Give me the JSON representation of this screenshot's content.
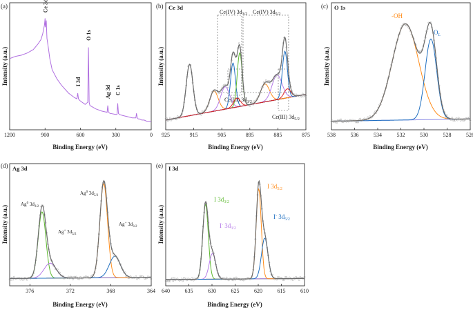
{
  "chart_data": [
    {
      "panel": "(a)",
      "type": "line",
      "title": "",
      "xlabel": "Binding Energy (eV)",
      "ylabel": "Intensity (a.u.)",
      "xlim": [
        1200,
        0
      ],
      "x_ticks": [
        "1200",
        "900",
        "600",
        "300",
        "0"
      ],
      "series": [
        {
          "name": "survey",
          "color": "#b06fe0",
          "x": [
            1200,
            1150,
            1100,
            1050,
            1000,
            960,
            935,
            920,
            905,
            900,
            898,
            890,
            884,
            870,
            860,
            840,
            800,
            760,
            700,
            650,
            630,
            623,
            617,
            610,
            600,
            560,
            538,
            532,
            526,
            520,
            470,
            420,
            374,
            368,
            362,
            350,
            300,
            290,
            284,
            278,
            270,
            240,
            200,
            160,
            130,
            125,
            118,
            110,
            100,
            80,
            60,
            40,
            20,
            0
          ],
          "y": [
            0.6,
            0.62,
            0.63,
            0.65,
            0.68,
            0.73,
            0.77,
            0.82,
            0.9,
            0.96,
            0.88,
            0.94,
            0.78,
            0.68,
            0.6,
            0.5,
            0.42,
            0.36,
            0.29,
            0.25,
            0.24,
            0.29,
            0.24,
            0.23,
            0.22,
            0.19,
            0.21,
            0.7,
            0.21,
            0.18,
            0.15,
            0.13,
            0.12,
            0.18,
            0.12,
            0.11,
            0.1,
            0.1,
            0.2,
            0.11,
            0.1,
            0.09,
            0.08,
            0.07,
            0.07,
            0.11,
            0.07,
            0.06,
            0.06,
            0.05,
            0.05,
            0.04,
            0.04,
            0.04
          ]
        }
      ],
      "annotations": [
        {
          "text": "Ce 3d",
          "x": 900
        },
        {
          "text": "O 1s",
          "x": 532
        },
        {
          "text": "I 3d",
          "x": 620
        },
        {
          "text": "Ag 3d",
          "x": 370
        },
        {
          "text": "C 1s",
          "x": 284
        }
      ]
    },
    {
      "panel": "(b)",
      "type": "line",
      "title": "Ce 3d",
      "xlabel": "Binding Energy (eV)",
      "ylabel": "Intensity (a.u.)",
      "xlim": [
        925,
        875
      ],
      "x_ticks": [
        "925",
        "915",
        "905",
        "895",
        "885",
        "875"
      ],
      "peaks": [
        {
          "center": 916.5,
          "height": 0.46,
          "width": 1.2,
          "color": "#808080"
        },
        {
          "center": 907.8,
          "height": 0.18,
          "width": 1.5,
          "color": "#ff8c1a"
        },
        {
          "center": 903.8,
          "height": 0.2,
          "width": 1.6,
          "color": "#b57be8"
        },
        {
          "center": 901.0,
          "height": 0.4,
          "width": 0.9,
          "color": "#1f6fc0"
        },
        {
          "center": 898.6,
          "height": 0.48,
          "width": 0.9,
          "color": "#5cb82e"
        },
        {
          "center": 899.6,
          "height": 0.08,
          "width": 1.2,
          "color": "#e02020"
        },
        {
          "center": 889.6,
          "height": 0.16,
          "width": 1.6,
          "color": "#ff8c1a"
        },
        {
          "center": 885.3,
          "height": 0.22,
          "width": 1.8,
          "color": "#b57be8"
        },
        {
          "center": 882.5,
          "height": 0.42,
          "width": 0.9,
          "color": "#1f6fc0"
        },
        {
          "center": 881.6,
          "height": 0.08,
          "width": 1.2,
          "color": "#e02020"
        }
      ],
      "background": [
        0.05,
        0.28
      ],
      "labels": [
        "Ce(IV) 3d3/2",
        "Ce(IV) 3d5/2",
        "Ce(III) 3d3/2",
        "Ce(III) 3d5/2"
      ]
    },
    {
      "panel": "(c)",
      "type": "line",
      "title": "O 1s",
      "xlabel": "Binding Energy (eV)",
      "ylabel": "Intensity (a.u.)",
      "xlim": [
        538,
        526
      ],
      "x_ticks": [
        "538",
        "536",
        "534",
        "532",
        "530",
        "528",
        "526"
      ],
      "peaks": [
        {
          "center": 531.6,
          "height": 0.86,
          "width": 1.15,
          "color": "#ff8c1a"
        },
        {
          "center": 529.4,
          "height": 0.72,
          "width": 0.5,
          "color": "#1f6fc0"
        }
      ],
      "background": [
        0.04,
        0.06
      ],
      "labels": [
        "-OH",
        "OL"
      ]
    },
    {
      "panel": "(d)",
      "type": "line",
      "title": "Ag 3d",
      "xlabel": "Binding Energy (eV)",
      "ylabel": "Intensity (a.u.)",
      "xlim": [
        378,
        364
      ],
      "x_ticks": [
        "376",
        "372",
        "368",
        "364"
      ],
      "peaks": [
        {
          "center": 374.8,
          "height": 0.62,
          "width": 0.38,
          "color": "#5cb82e"
        },
        {
          "center": 374.0,
          "height": 0.14,
          "width": 0.6,
          "color": "#b57be8"
        },
        {
          "center": 368.7,
          "height": 0.88,
          "width": 0.38,
          "color": "#ff8c1a"
        },
        {
          "center": 367.6,
          "height": 0.2,
          "width": 0.55,
          "color": "#1f6fc0"
        }
      ],
      "background": [
        0.03,
        0.04
      ],
      "labels": [
        "Ag0 3d3/2",
        "Ag+ 3d5/2",
        "Ag0 3d5/2",
        "Ag+ 3d3/2"
      ]
    },
    {
      "panel": "(e)",
      "type": "line",
      "title": "I 3d",
      "xlabel": "Binding Energy (eV)",
      "ylabel": "Intensity (a.u.)",
      "xlim": [
        640,
        610
      ],
      "x_ticks": [
        "640",
        "635",
        "630",
        "625",
        "620",
        "615",
        "610"
      ],
      "peaks": [
        {
          "center": 631.4,
          "height": 0.7,
          "width": 0.6,
          "color": "#5cb82e"
        },
        {
          "center": 629.9,
          "height": 0.24,
          "width": 0.7,
          "color": "#b57be8"
        },
        {
          "center": 619.9,
          "height": 0.84,
          "width": 0.55,
          "color": "#ff8c1a"
        },
        {
          "center": 618.6,
          "height": 0.38,
          "width": 0.7,
          "color": "#1f6fc0"
        }
      ],
      "background": [
        0.02,
        0.03
      ],
      "labels": [
        "I 3d3/2",
        "I- 3d3/2",
        "I 3d5/2",
        "I- 3d5/2"
      ]
    }
  ],
  "panels": {
    "a": {
      "tag": "(a)"
    },
    "b": {
      "tag": "(b)",
      "title": "Ce 3d",
      "l1": "Ce(IV) 3d",
      "l1s": "3/2",
      "l2": "Ce(IV) 3d",
      "l2s": "5/2",
      "l3": "Ce(III) 3d",
      "l3s": "3/2",
      "l4": "Ce(III) 3d",
      "l4s": "5/2"
    },
    "c": {
      "tag": "(c)",
      "title": "O 1s",
      "l1": "-OH",
      "l2": "O",
      "l2s": "L"
    },
    "d": {
      "tag": "(d)",
      "title": "Ag 3d",
      "l1": "Ag",
      "l1sup": "0",
      "l1b": " 3d",
      "l1s": "3/2",
      "l2": "Ag",
      "l2sup": "+",
      "l2b": " 3d",
      "l2s": "5/2",
      "l3": "Ag",
      "l3sup": "0",
      "l3b": " 3d",
      "l3s": "5/2",
      "l4": "Ag",
      "l4sup": "+",
      "l4b": " 3d",
      "l4s": "3/2"
    },
    "e": {
      "tag": "(e)",
      "title": "I 3d",
      "l1": "I 3d",
      "l1s": "3/2",
      "l2": "I",
      "l2sup": "-",
      "l2b": " 3d",
      "l2s": "3/2",
      "l3": "I 3d",
      "l3s": "5/2",
      "l4": "I",
      "l4sup": "-",
      "l4b": " 3d",
      "l4s": "5/2"
    },
    "a_ann": [
      "Ce 3d",
      "O 1s",
      "I 3d",
      "Ag 3d",
      "C 1s"
    ]
  },
  "axes": {
    "xlabel": "Binding Energy (eV)",
    "ylabel": "Intensity (a.u.)"
  }
}
